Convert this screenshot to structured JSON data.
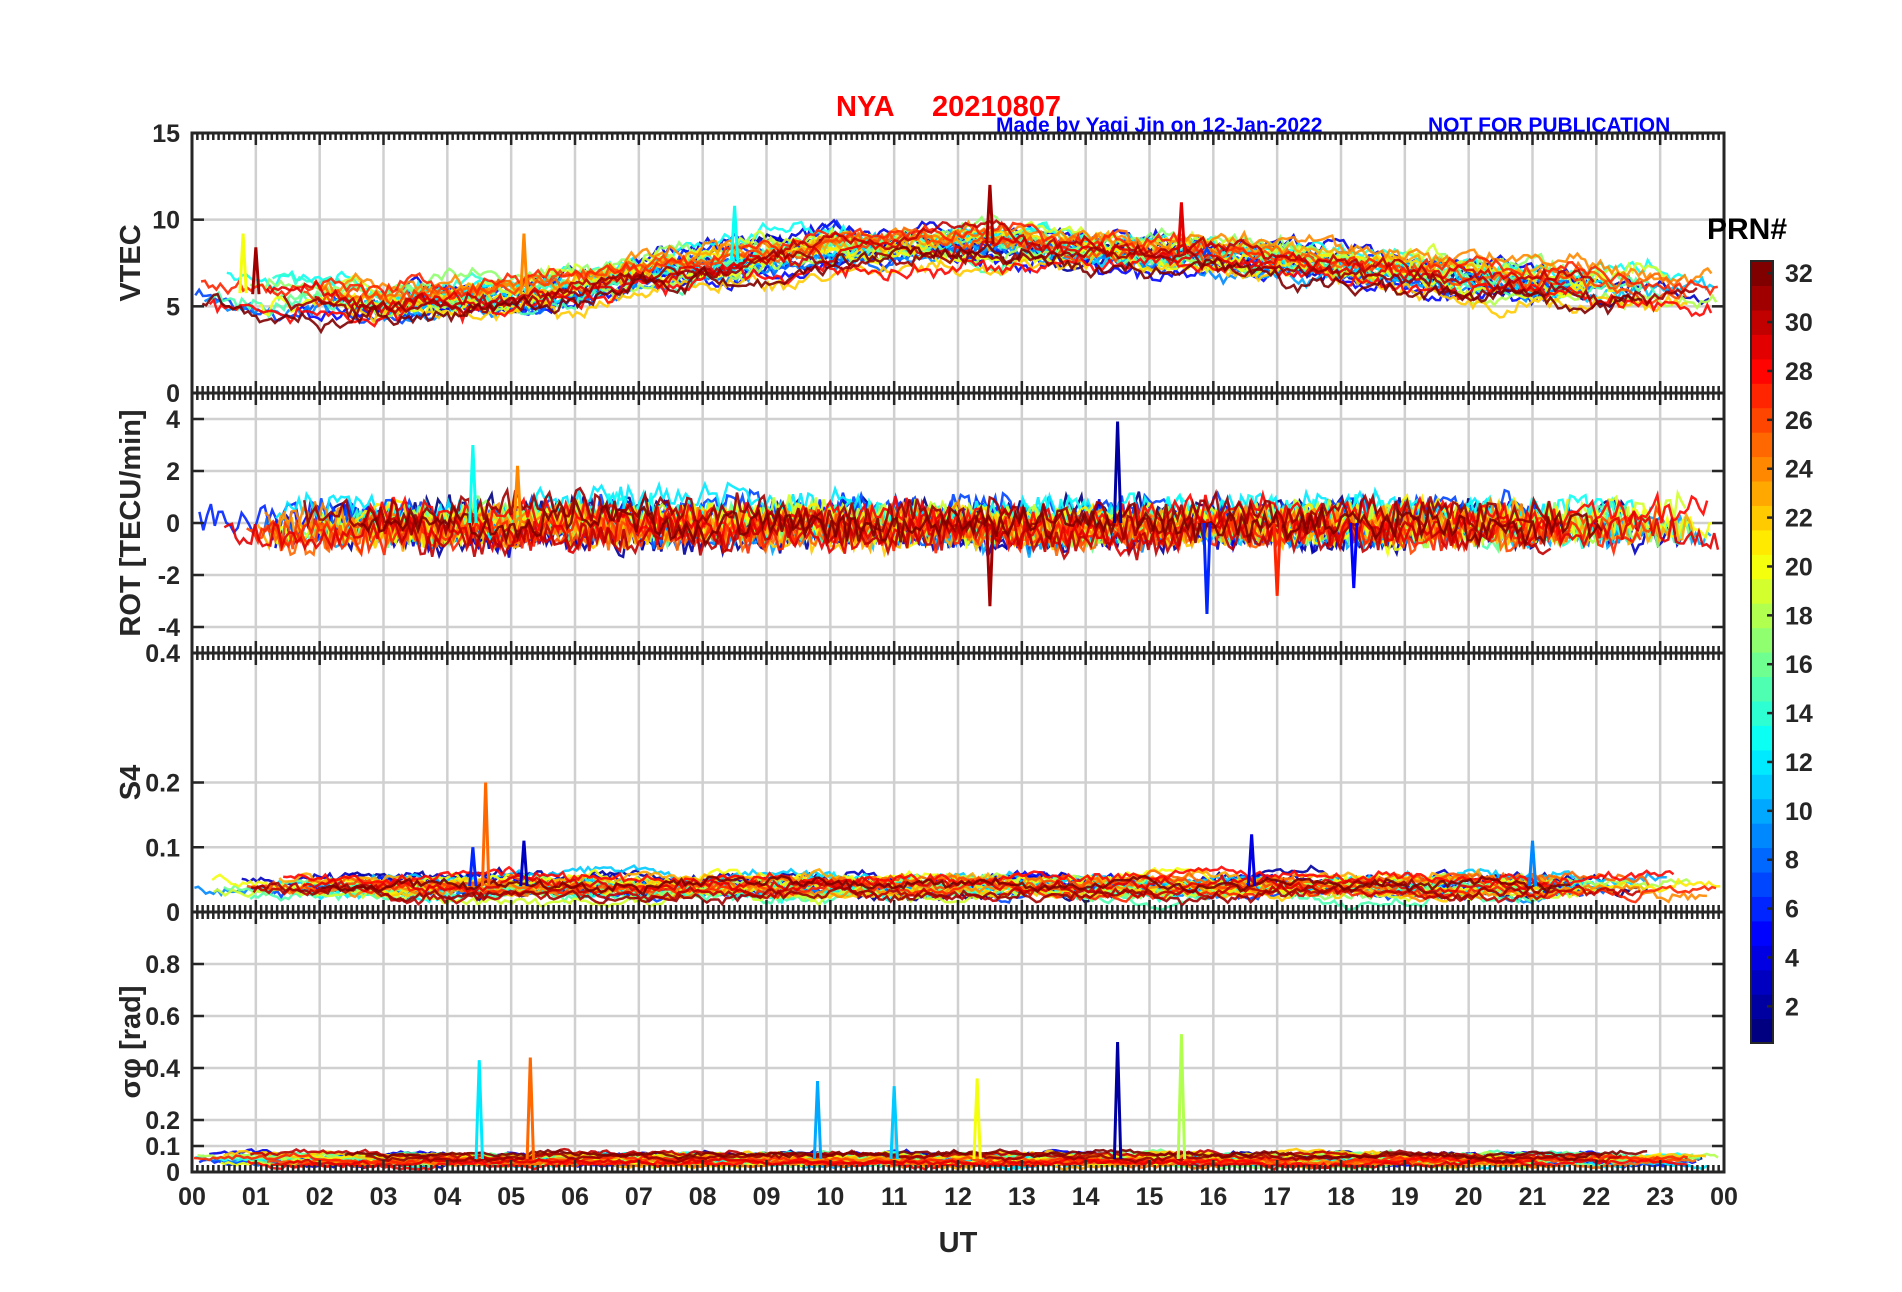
{
  "header": {
    "station": "NYA",
    "date": "20210807",
    "credit": "Made by Yaqi Jin on 12-Jan-2022",
    "notice": "NOT FOR PUBLICATION"
  },
  "colors": {
    "title": "#ff0000",
    "credit": "#0000ff",
    "axis": "#262626",
    "grid": "#d0d0d0"
  },
  "colorbar": {
    "label": "PRN#",
    "ticks": [
      "2",
      "4",
      "6",
      "8",
      "10",
      "12",
      "14",
      "16",
      "18",
      "20",
      "22",
      "24",
      "26",
      "28",
      "30",
      "32"
    ],
    "range": [
      1,
      32
    ],
    "colormap": "jet"
  },
  "chart_data": {
    "type": "line",
    "x": {
      "label": "UT",
      "range": [
        0,
        24
      ],
      "unit": "hours",
      "tick_labels": [
        "00",
        "01",
        "02",
        "03",
        "04",
        "05",
        "06",
        "07",
        "08",
        "09",
        "10",
        "11",
        "12",
        "13",
        "14",
        "15",
        "16",
        "17",
        "18",
        "19",
        "20",
        "21",
        "22",
        "23",
        "00"
      ]
    },
    "panels": [
      {
        "id": "vtec",
        "ylabel": "VTEC",
        "ylim": [
          0,
          15
        ],
        "yticks": [
          "0",
          "5",
          "10",
          "15"
        ],
        "ytick_values": [
          0,
          5,
          10,
          15
        ],
        "baseline": [
          [
            0,
            6.0
          ],
          [
            1,
            5.7
          ],
          [
            2,
            5.6
          ],
          [
            3,
            5.2
          ],
          [
            4,
            5.4
          ],
          [
            5,
            5.6
          ],
          [
            6,
            6.0
          ],
          [
            7,
            6.8
          ],
          [
            8,
            7.4
          ],
          [
            9,
            7.9
          ],
          [
            10,
            8.2
          ],
          [
            11,
            8.4
          ],
          [
            12,
            8.6
          ],
          [
            13,
            8.6
          ],
          [
            14,
            8.2
          ],
          [
            15,
            7.9
          ],
          [
            16,
            8.0
          ],
          [
            17,
            7.8
          ],
          [
            18,
            7.4
          ],
          [
            19,
            6.9
          ],
          [
            20,
            6.6
          ],
          [
            21,
            6.4
          ],
          [
            22,
            6.2
          ],
          [
            23,
            6.0
          ],
          [
            24,
            6.0
          ]
        ],
        "features": [
          {
            "prn": 20,
            "t": 0.8,
            "value": 9.2
          },
          {
            "prn": 31,
            "t": 1.0,
            "value": 8.4
          },
          {
            "prn": 24,
            "t": 5.2,
            "value": 9.2
          },
          {
            "prn": 13,
            "t": 8.5,
            "value": 10.8
          },
          {
            "prn": 31,
            "t": 12.5,
            "value": 12.0
          },
          {
            "prn": 29,
            "t": 15.5,
            "value": 11.0
          },
          {
            "prn": 7,
            "t": 15.9,
            "value": 8.3
          }
        ]
      },
      {
        "id": "rot",
        "ylabel": "ROT [TECU/min]",
        "ylim": [
          -5,
          5
        ],
        "yticks": [
          "-4",
          "-2",
          "0",
          "2",
          "4"
        ],
        "ytick_values": [
          -4,
          -2,
          0,
          2,
          4
        ],
        "baseline": [
          [
            0,
            0
          ],
          [
            24,
            0
          ]
        ],
        "features": [
          {
            "prn": 13,
            "t": 4.4,
            "value": 3.0
          },
          {
            "prn": 24,
            "t": 5.1,
            "value": 2.2
          },
          {
            "prn": 31,
            "t": 12.5,
            "value": -3.2
          },
          {
            "prn": 2,
            "t": 14.5,
            "value": 3.9
          },
          {
            "prn": 6,
            "t": 15.9,
            "value": -3.5
          },
          {
            "prn": 27,
            "t": 17.0,
            "value": -2.8
          },
          {
            "prn": 5,
            "t": 18.2,
            "value": -2.5
          }
        ]
      },
      {
        "id": "s4",
        "ylabel": "S4",
        "ylim": [
          0,
          0.4
        ],
        "yticks": [
          "0",
          "0.1",
          "0.2",
          "0.4"
        ],
        "ytick_values": [
          0,
          0.1,
          0.2,
          0.4
        ],
        "baseline": [
          [
            0,
            0.04
          ],
          [
            24,
            0.04
          ]
        ],
        "features": [
          {
            "prn": 25,
            "t": 4.6,
            "value": 0.2
          },
          {
            "prn": 6,
            "t": 4.4,
            "value": 0.1
          },
          {
            "prn": 3,
            "t": 5.2,
            "value": 0.11
          },
          {
            "prn": 4,
            "t": 16.6,
            "value": 0.12
          },
          {
            "prn": 9,
            "t": 21.0,
            "value": 0.11
          }
        ]
      },
      {
        "id": "sigma_phi",
        "ylabel": "σφ [rad]",
        "ylim": [
          0,
          1.0
        ],
        "yticks": [
          "0",
          "0.1",
          "0.2",
          "0.4",
          "0.6",
          "0.8"
        ],
        "ytick_values": [
          0,
          0.1,
          0.2,
          0.4,
          0.6,
          0.8
        ],
        "baseline": [
          [
            0,
            0.05
          ],
          [
            24,
            0.05
          ]
        ],
        "features": [
          {
            "prn": 12,
            "t": 4.5,
            "value": 0.43
          },
          {
            "prn": 25,
            "t": 5.3,
            "value": 0.44
          },
          {
            "prn": 10,
            "t": 9.8,
            "value": 0.35
          },
          {
            "prn": 11,
            "t": 11.0,
            "value": 0.33
          },
          {
            "prn": 20,
            "t": 12.3,
            "value": 0.36
          },
          {
            "prn": 2,
            "t": 14.5,
            "value": 0.5
          },
          {
            "prn": 18,
            "t": 15.5,
            "value": 0.53
          }
        ]
      }
    ]
  }
}
